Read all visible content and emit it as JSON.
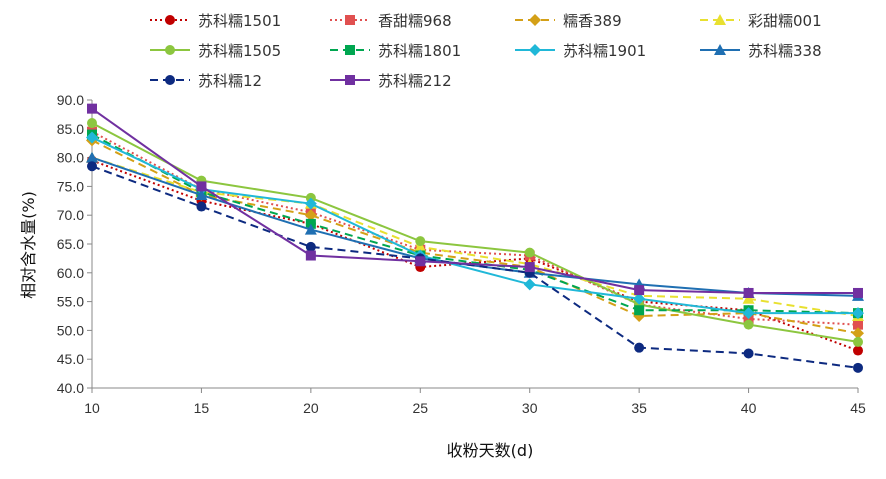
{
  "chart_data": {
    "type": "line",
    "xlabel": "收粉天数(d)",
    "ylabel": "相对含水量(%)",
    "x": [
      10,
      15,
      20,
      25,
      30,
      35,
      40,
      45
    ],
    "xlim": [
      10,
      45
    ],
    "ylim": [
      40,
      90
    ],
    "yticks": [
      "40.0",
      "45.0",
      "50.0",
      "55.0",
      "60.0",
      "65.0",
      "70.0",
      "75.0",
      "80.0",
      "85.0",
      "90.0"
    ],
    "xticks": [
      "10",
      "15",
      "20",
      "25",
      "30",
      "35",
      "40",
      "45"
    ],
    "grid": false,
    "legend_position": "top",
    "series": [
      {
        "name": "苏科糯1501",
        "color": "#c00000",
        "dash": "2,3",
        "marker": "circle",
        "values": [
          79.5,
          72.5,
          68.5,
          61.0,
          62.5,
          55.0,
          53.5,
          46.5
        ]
      },
      {
        "name": "香甜糯968",
        "color": "#e05050",
        "dash": "2,3",
        "marker": "square",
        "values": [
          84.5,
          74.5,
          70.5,
          64.0,
          63.0,
          54.5,
          52.0,
          51.0
        ]
      },
      {
        "name": "糯香389",
        "color": "#d4a017",
        "dash": "8,5",
        "marker": "diamond",
        "values": [
          83.0,
          73.5,
          70.0,
          63.5,
          61.0,
          52.5,
          53.0,
          49.5
        ]
      },
      {
        "name": "彩甜糯001",
        "color": "#e8e030",
        "dash": "8,5",
        "marker": "triangle",
        "values": [
          80.0,
          74.0,
          72.0,
          64.5,
          61.5,
          56.0,
          55.5,
          52.5
        ]
      },
      {
        "name": "苏科糯1505",
        "color": "#8cc63f",
        "dash": "",
        "marker": "circle",
        "values": [
          86.0,
          76.0,
          73.0,
          65.5,
          63.5,
          54.5,
          51.0,
          48.0
        ]
      },
      {
        "name": "苏科糯1801",
        "color": "#00a650",
        "dash": "8,5",
        "marker": "square",
        "values": [
          84.0,
          74.0,
          68.5,
          63.0,
          60.5,
          53.5,
          53.5,
          53.0
        ]
      },
      {
        "name": "苏科糯1901",
        "color": "#20b8d8",
        "dash": "",
        "marker": "diamond",
        "values": [
          83.5,
          74.5,
          72.0,
          63.0,
          58.0,
          55.5,
          53.0,
          53.0
        ]
      },
      {
        "name": "苏科糯338",
        "color": "#1f6fb2",
        "dash": "",
        "marker": "triangle",
        "values": [
          80.0,
          73.5,
          67.5,
          62.5,
          60.0,
          58.0,
          56.5,
          56.0
        ]
      },
      {
        "name": "苏科糯12",
        "color": "#0d2a80",
        "dash": "8,5",
        "marker": "circle",
        "values": [
          78.5,
          71.5,
          64.5,
          62.5,
          60.0,
          47.0,
          46.0,
          43.5
        ]
      },
      {
        "name": "苏科糯212",
        "color": "#7030a0",
        "dash": "",
        "marker": "square",
        "values": [
          88.5,
          75.0,
          63.0,
          62.0,
          61.0,
          57.0,
          56.5,
          56.5
        ]
      }
    ]
  }
}
